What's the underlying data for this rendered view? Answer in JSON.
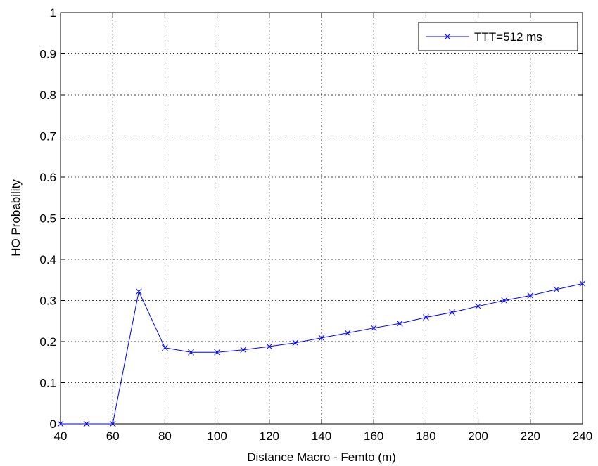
{
  "chart_data": {
    "type": "line",
    "title": "",
    "xlabel": "Distance Macro - Femto (m)",
    "ylabel": "HO Probability",
    "xlim": [
      40,
      240
    ],
    "ylim": [
      0,
      1
    ],
    "xticks": [
      40,
      60,
      80,
      100,
      120,
      140,
      160,
      180,
      200,
      220,
      240
    ],
    "yticks": [
      0,
      0.1,
      0.2,
      0.3,
      0.4,
      0.5,
      0.6,
      0.7,
      0.8,
      0.9,
      1
    ],
    "ytick_labels": [
      "0",
      "0.1",
      "0.2",
      "0.3",
      "0.4",
      "0.5",
      "0.6",
      "0.7",
      "0.8",
      "0.9",
      "1"
    ],
    "grid": true,
    "legend_position": "top-right",
    "series": [
      {
        "name": "TTT=512 ms",
        "color": "#0000ff",
        "marker": "x",
        "x": [
          40,
          50,
          60,
          70,
          80,
          90,
          100,
          110,
          120,
          130,
          140,
          150,
          160,
          170,
          180,
          190,
          200,
          210,
          220,
          230,
          240
        ],
        "y": [
          0,
          0,
          0,
          0.322,
          0.185,
          0.174,
          0.174,
          0.18,
          0.188,
          0.197,
          0.209,
          0.221,
          0.233,
          0.244,
          0.259,
          0.271,
          0.286,
          0.3,
          0.312,
          0.327,
          0.341
        ]
      }
    ]
  }
}
